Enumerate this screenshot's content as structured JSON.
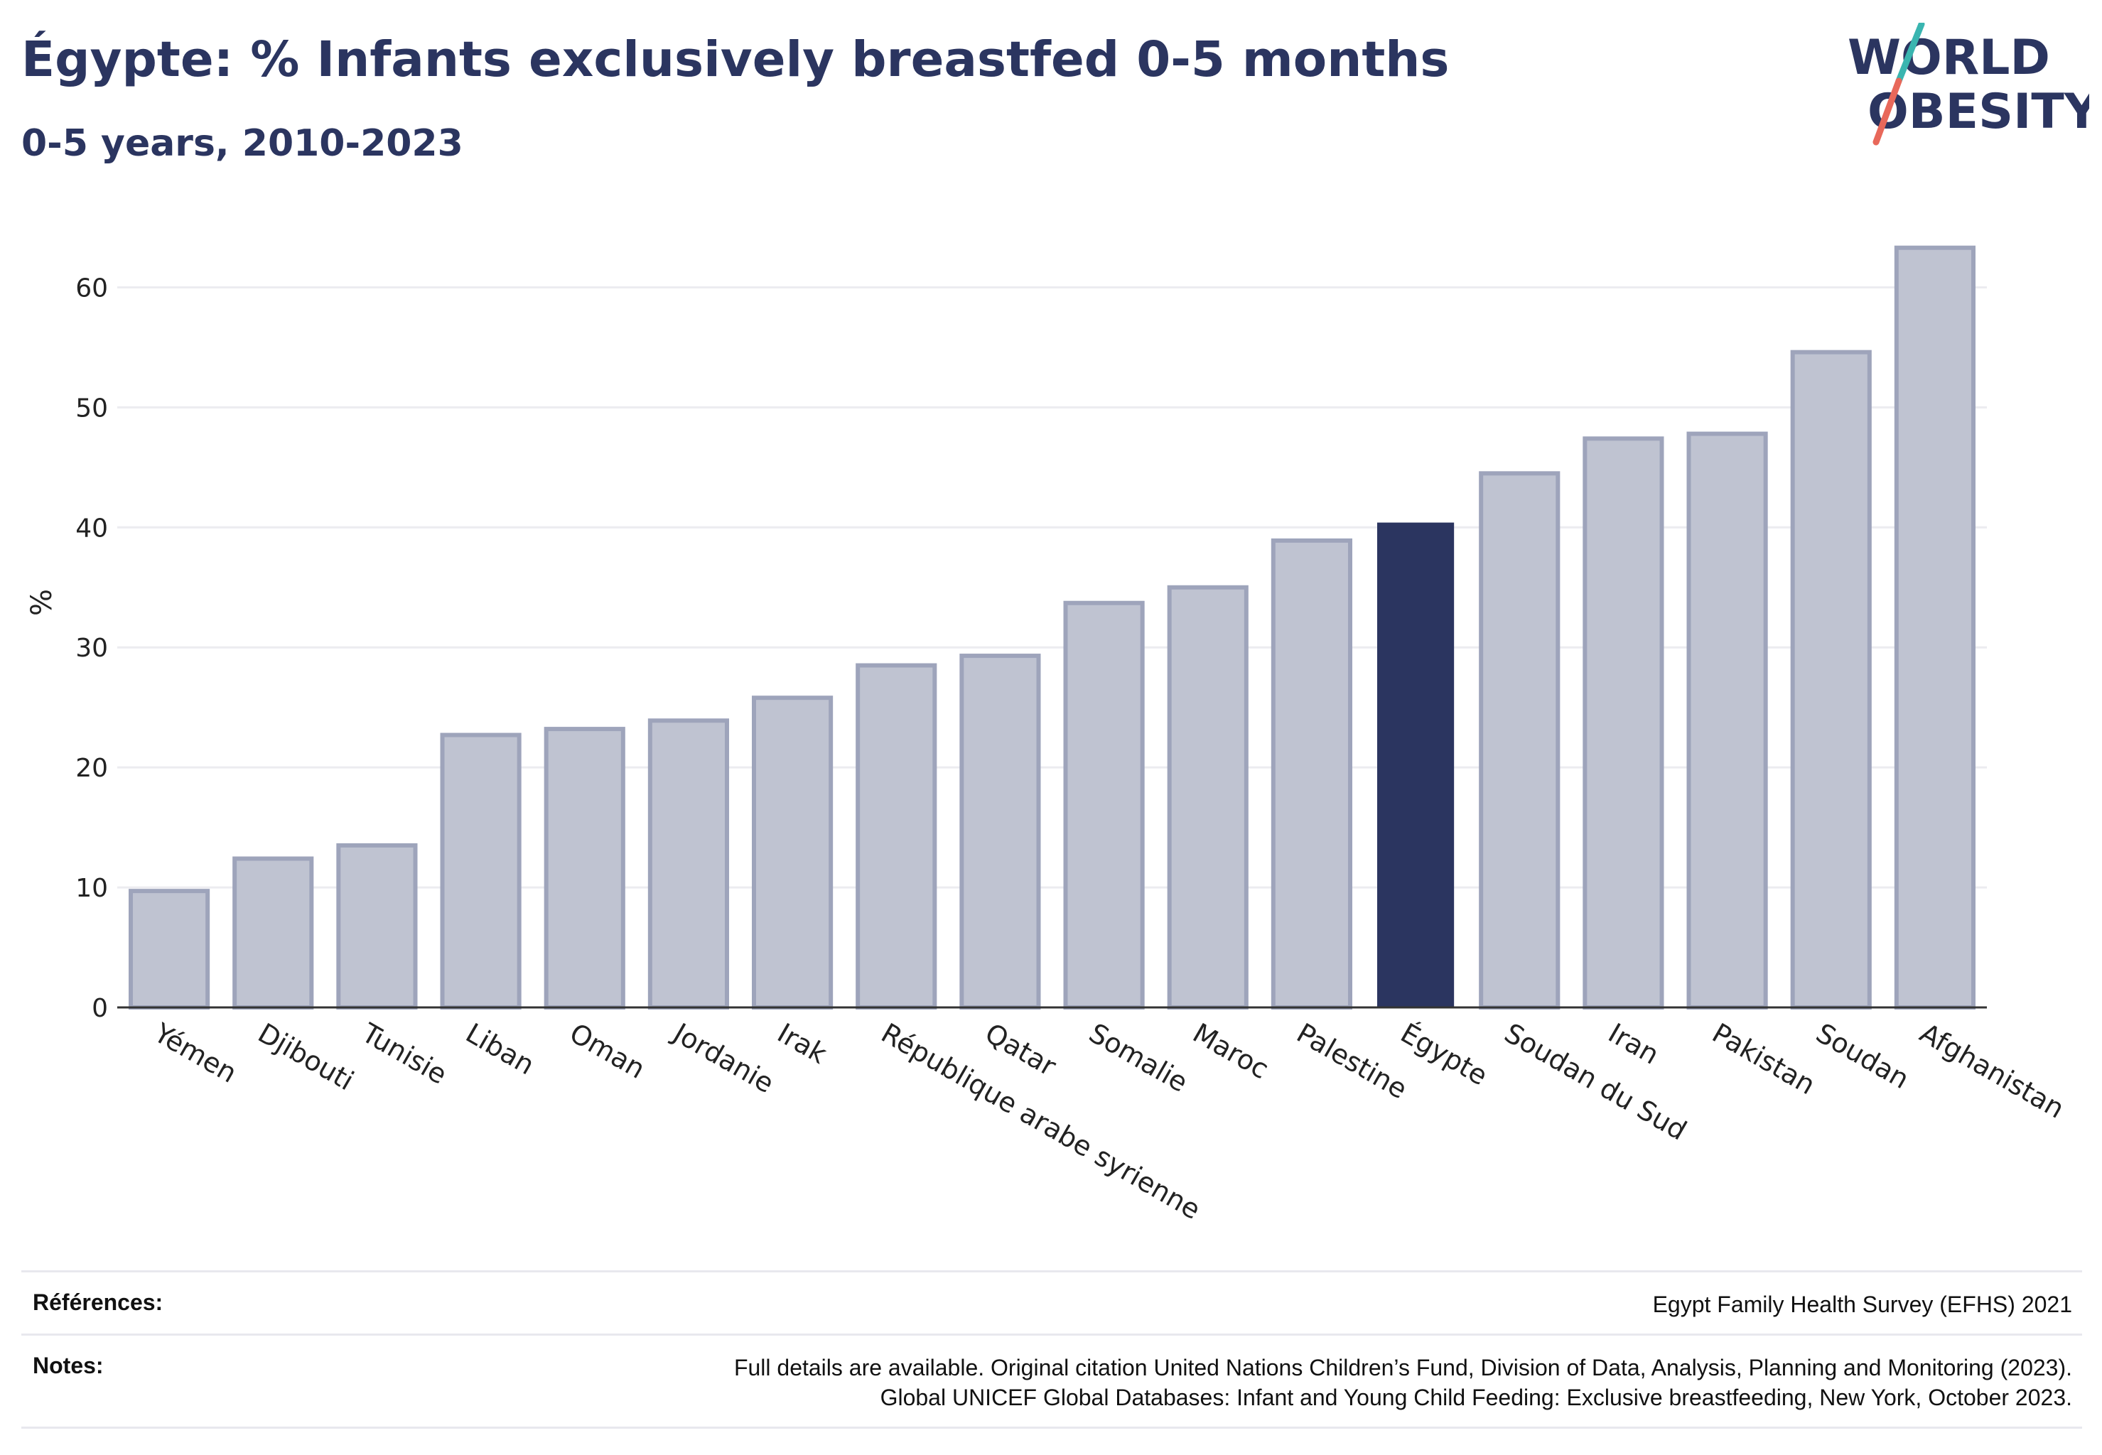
{
  "header": {
    "title": "Égypte: % Infants exclusively breastfed 0-5 months",
    "subtitle": "0-5 years, 2010-2023"
  },
  "logo": {
    "line1": "WORLD",
    "line2": "OBESITY",
    "colors": {
      "text": "#2b3560",
      "slash_top": "#3ab5b0",
      "slash_bottom": "#e8685a"
    }
  },
  "chart_data": {
    "type": "bar",
    "ylabel": "%",
    "xlabel": "",
    "ylim": [
      0,
      65
    ],
    "yticks": [
      0,
      10,
      20,
      30,
      40,
      50,
      60
    ],
    "grid": true,
    "categories": [
      "Yémen",
      "Djibouti",
      "Tunisie",
      "Liban",
      "Oman",
      "Jordanie",
      "Irak",
      "République arabe syrienne",
      "Qatar",
      "Somalie",
      "Maroc",
      "Palestine",
      "Égypte",
      "Soudan du Sud",
      "Iran",
      "Pakistan",
      "Soudan",
      "Afghanistan"
    ],
    "values": [
      9.7,
      12.4,
      13.5,
      22.7,
      23.2,
      23.9,
      25.8,
      28.5,
      29.3,
      33.7,
      35.0,
      38.9,
      40.4,
      44.5,
      47.4,
      47.8,
      54.6,
      63.3
    ],
    "highlight": "Égypte",
    "colors": {
      "bar": "#bfc3d1",
      "bar_border": "#9ea4bb",
      "highlight": "#2b3560",
      "grid": "#ececf0",
      "axis": "#333333"
    }
  },
  "footer": {
    "references_label": "Références:",
    "references_value": "Egypt Family Health Survey (EFHS) 2021",
    "notes_label": "Notes:",
    "notes_line1": "Full details are available. Original citation United Nations Children’s Fund, Division of Data, Analysis, Planning and Monitoring (2023).",
    "notes_line2": "Global UNICEF Global Databases: Infant and Young Child Feeding: Exclusive breastfeeding, New York, October 2023."
  }
}
